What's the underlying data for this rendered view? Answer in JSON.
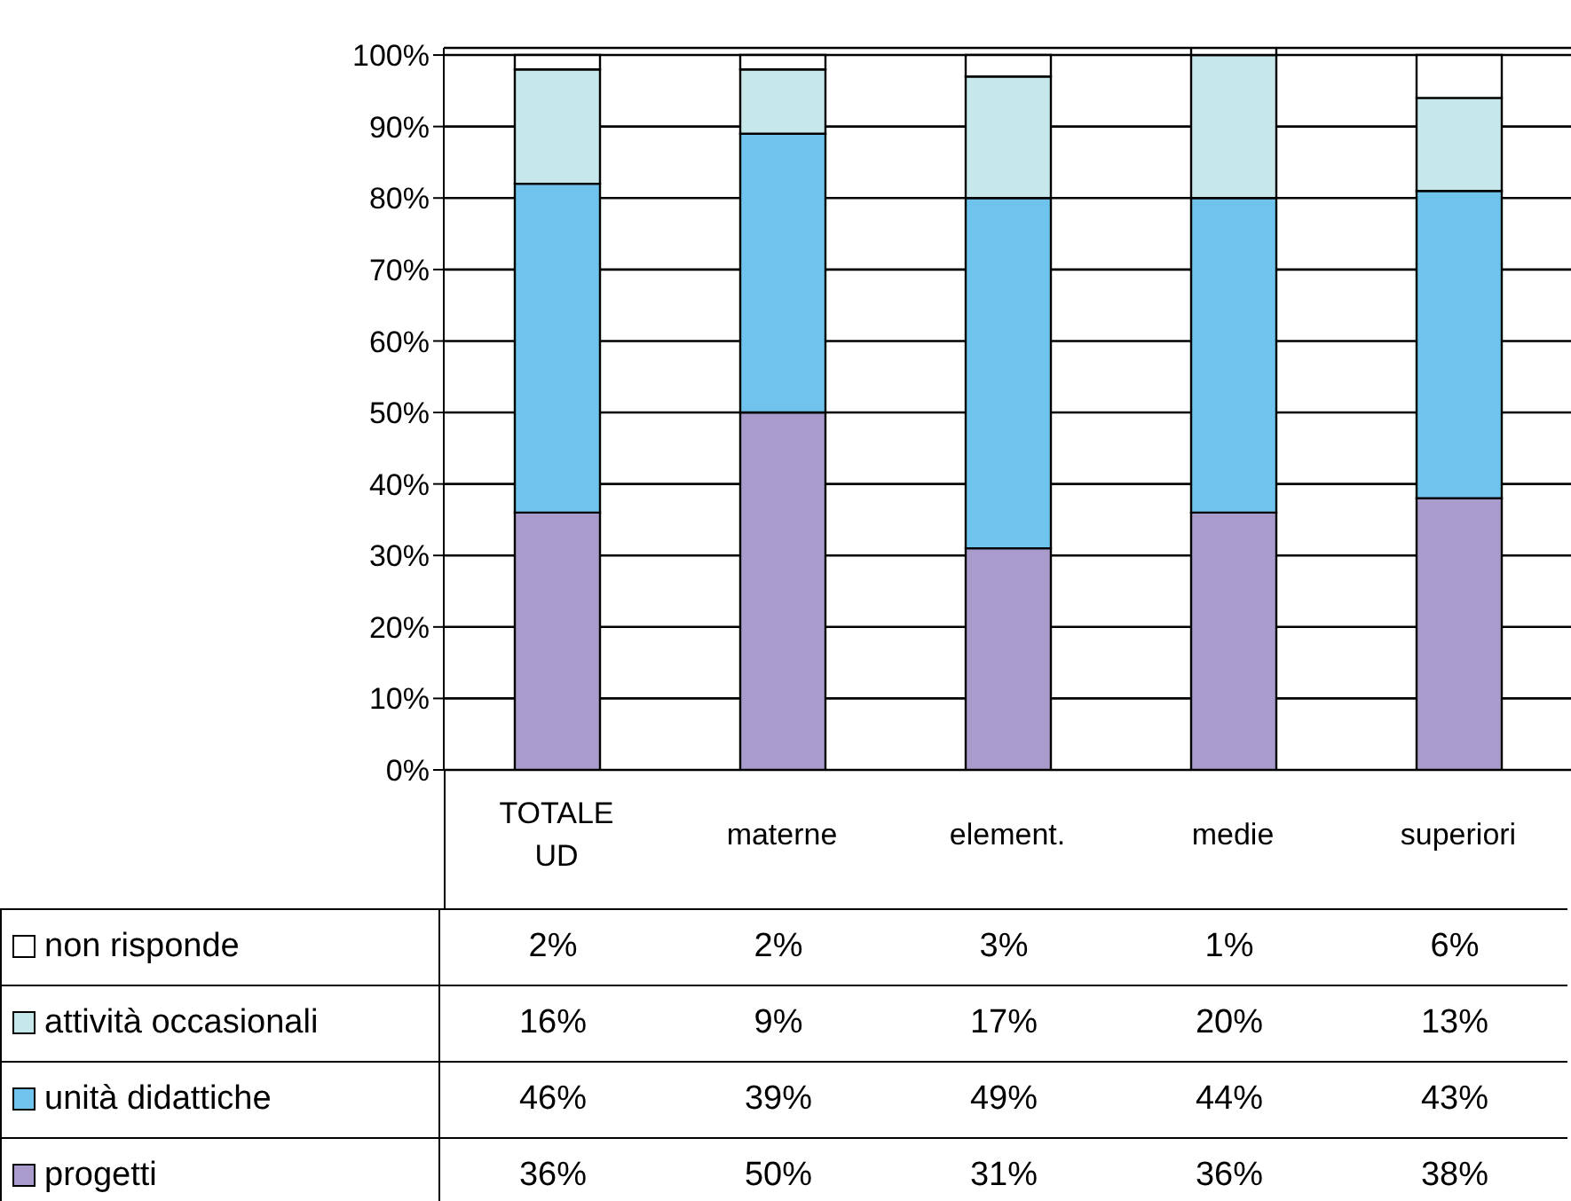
{
  "chart_data": {
    "type": "bar",
    "stacked": true,
    "categories": [
      "TOTALE UD",
      "materne",
      "element.",
      "medie",
      "superiori"
    ],
    "series": [
      {
        "name": "progetti",
        "color": "#a99bcc",
        "values": [
          36,
          50,
          31,
          36,
          38
        ],
        "value_labels": [
          "36%",
          "50%",
          "31%",
          "36%",
          "38%"
        ]
      },
      {
        "name": "unità didattiche",
        "color": "#6fc3ec",
        "values": [
          46,
          39,
          49,
          44,
          43
        ],
        "value_labels": [
          "46%",
          "39%",
          "49%",
          "44%",
          "43%"
        ]
      },
      {
        "name": "attività occasionali",
        "color": "#c6e8ea",
        "values": [
          16,
          9,
          17,
          20,
          13
        ],
        "value_labels": [
          "16%",
          "9%",
          "17%",
          "20%",
          "13%"
        ]
      },
      {
        "name": "non risponde",
        "color": "#ffffff",
        "values": [
          2,
          2,
          3,
          1,
          6
        ],
        "value_labels": [
          "2%",
          "2%",
          "3%",
          "1%",
          "6%"
        ]
      }
    ],
    "ylim": [
      0,
      101
    ],
    "yticks": [
      {
        "value": 0,
        "label": "0%"
      },
      {
        "value": 10,
        "label": "10%"
      },
      {
        "value": 20,
        "label": "20%"
      },
      {
        "value": 30,
        "label": "30%"
      },
      {
        "value": 40,
        "label": "40%"
      },
      {
        "value": 50,
        "label": "50%"
      },
      {
        "value": 60,
        "label": "60%"
      },
      {
        "value": 70,
        "label": "70%"
      },
      {
        "value": 80,
        "label": "80%"
      },
      {
        "value": 90,
        "label": "90%"
      },
      {
        "value": 100,
        "label": "100%"
      }
    ],
    "grid": "y",
    "legend": "bottom left"
  }
}
